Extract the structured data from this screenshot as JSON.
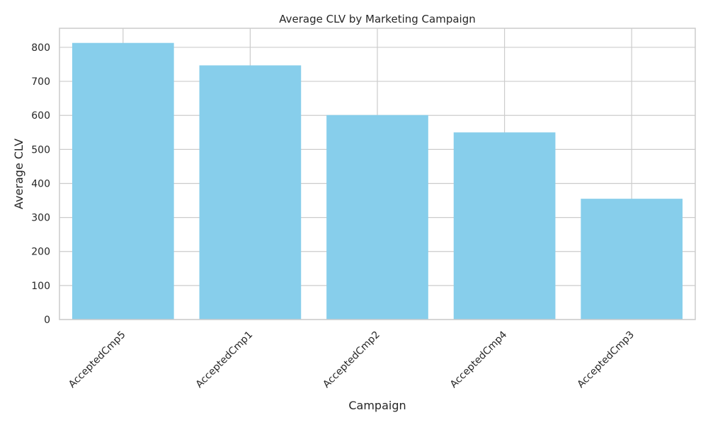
{
  "chart_data": {
    "type": "bar",
    "title": "Average CLV by Marketing Campaign",
    "xlabel": "Campaign",
    "ylabel": "Average CLV",
    "categories": [
      "AcceptedCmp5",
      "AcceptedCmp1",
      "AcceptedCmp2",
      "AcceptedCmp4",
      "AcceptedCmp3"
    ],
    "values": [
      813,
      747,
      601,
      550,
      355
    ],
    "ylim": [
      0,
      856
    ],
    "yticks": [
      0,
      100,
      200,
      300,
      400,
      500,
      600,
      700,
      800
    ],
    "grid": true,
    "bar_color": "#87ceeb",
    "grid_color": "#cccccc"
  }
}
